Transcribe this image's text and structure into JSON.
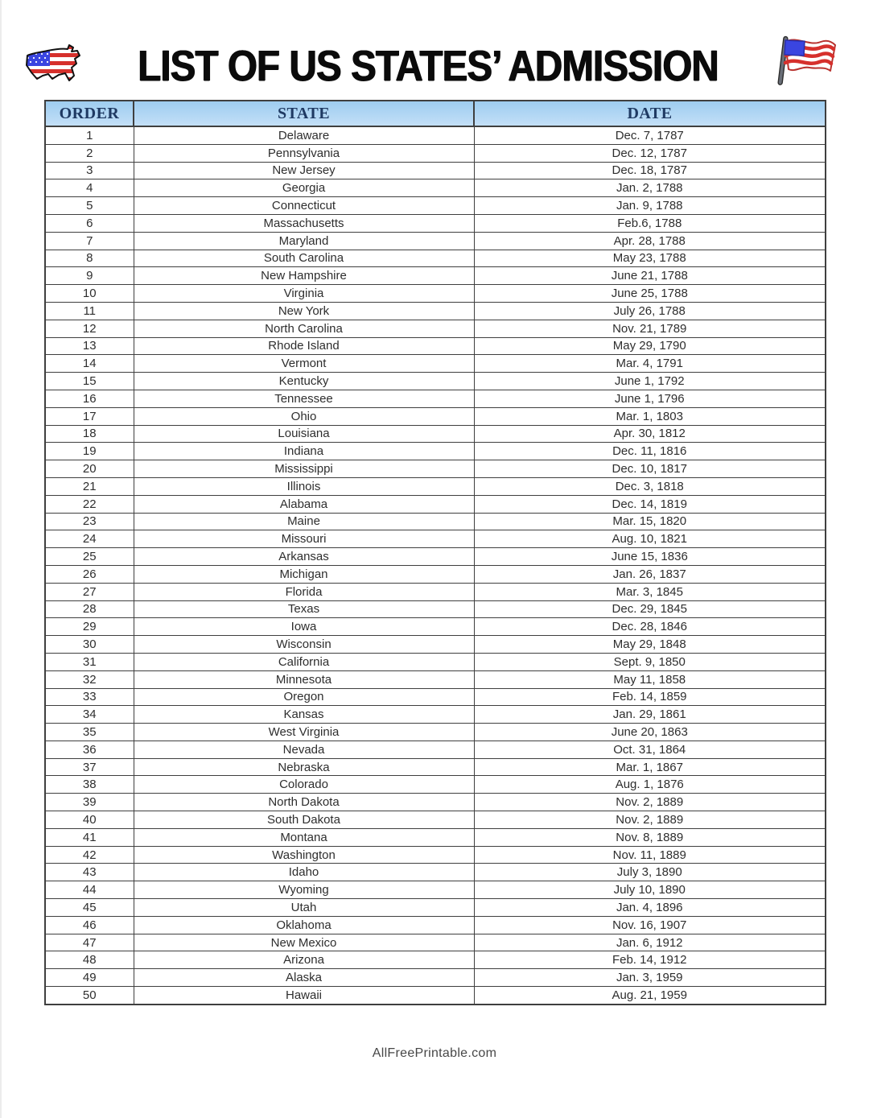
{
  "title": "LIST OF US STATES’ ADMISSION",
  "icons": {
    "left": "us-map-flag-icon",
    "right": "waving-us-flag-icon"
  },
  "colors": {
    "header_bg": "#aed3f1",
    "header_text": "#1f3a63",
    "border": "#3f3f3f",
    "body_text": "#2e2e2e",
    "flag_red": "#d6302c",
    "flag_blue": "#3a45e0"
  },
  "table": {
    "columns": [
      "ORDER",
      "STATE",
      "DATE"
    ],
    "rows": [
      [
        "1",
        "Delaware",
        "Dec. 7, 1787"
      ],
      [
        "2",
        "Pennsylvania",
        "Dec. 12, 1787"
      ],
      [
        "3",
        "New Jersey",
        "Dec. 18, 1787"
      ],
      [
        "4",
        "Georgia",
        "Jan. 2, 1788"
      ],
      [
        "5",
        "Connecticut",
        "Jan. 9, 1788"
      ],
      [
        "6",
        "Massachusetts",
        "Feb.6, 1788"
      ],
      [
        "7",
        "Maryland",
        "Apr. 28, 1788"
      ],
      [
        "8",
        "South Carolina",
        "May 23, 1788"
      ],
      [
        "9",
        "New Hampshire",
        "June 21, 1788"
      ],
      [
        "10",
        "Virginia",
        "June 25, 1788"
      ],
      [
        "11",
        "New York",
        "July 26, 1788"
      ],
      [
        "12",
        "North Carolina",
        "Nov. 21, 1789"
      ],
      [
        "13",
        "Rhode Island",
        "May 29, 1790"
      ],
      [
        "14",
        "Vermont",
        "Mar. 4, 1791"
      ],
      [
        "15",
        "Kentucky",
        "June 1, 1792"
      ],
      [
        "16",
        "Tennessee",
        "June 1, 1796"
      ],
      [
        "17",
        "Ohio",
        "Mar. 1, 1803"
      ],
      [
        "18",
        "Louisiana",
        "Apr. 30, 1812"
      ],
      [
        "19",
        "Indiana",
        "Dec. 11, 1816"
      ],
      [
        "20",
        "Mississippi",
        "Dec. 10, 1817"
      ],
      [
        "21",
        "Illinois",
        "Dec. 3, 1818"
      ],
      [
        "22",
        "Alabama",
        "Dec. 14, 1819"
      ],
      [
        "23",
        "Maine",
        "Mar. 15, 1820"
      ],
      [
        "24",
        "Missouri",
        "Aug. 10, 1821"
      ],
      [
        "25",
        "Arkansas",
        "June 15, 1836"
      ],
      [
        "26",
        "Michigan",
        "Jan. 26, 1837"
      ],
      [
        "27",
        "Florida",
        "Mar. 3, 1845"
      ],
      [
        "28",
        "Texas",
        "Dec. 29, 1845"
      ],
      [
        "29",
        "Iowa",
        "Dec. 28, 1846"
      ],
      [
        "30",
        "Wisconsin",
        "May 29, 1848"
      ],
      [
        "31",
        "California",
        "Sept. 9, 1850"
      ],
      [
        "32",
        "Minnesota",
        "May 11, 1858"
      ],
      [
        "33",
        "Oregon",
        "Feb. 14, 1859"
      ],
      [
        "34",
        "Kansas",
        "Jan. 29, 1861"
      ],
      [
        "35",
        "West Virginia",
        "June 20, 1863"
      ],
      [
        "36",
        "Nevada",
        "Oct. 31, 1864"
      ],
      [
        "37",
        "Nebraska",
        "Mar. 1, 1867"
      ],
      [
        "38",
        "Colorado",
        "Aug. 1, 1876"
      ],
      [
        "39",
        "North Dakota",
        "Nov. 2, 1889"
      ],
      [
        "40",
        "South Dakota",
        "Nov. 2, 1889"
      ],
      [
        "41",
        "Montana",
        "Nov. 8, 1889"
      ],
      [
        "42",
        "Washington",
        "Nov. 11, 1889"
      ],
      [
        "43",
        "Idaho",
        "July 3, 1890"
      ],
      [
        "44",
        "Wyoming",
        "July 10, 1890"
      ],
      [
        "45",
        "Utah",
        "Jan. 4, 1896"
      ],
      [
        "46",
        "Oklahoma",
        "Nov. 16, 1907"
      ],
      [
        "47",
        "New Mexico",
        "Jan. 6, 1912"
      ],
      [
        "48",
        "Arizona",
        "Feb. 14, 1912"
      ],
      [
        "49",
        "Alaska",
        "Jan. 3, 1959"
      ],
      [
        "50",
        "Hawaii",
        "Aug. 21, 1959"
      ]
    ]
  },
  "footer": {
    "site": "AllFreePrintable.com"
  }
}
